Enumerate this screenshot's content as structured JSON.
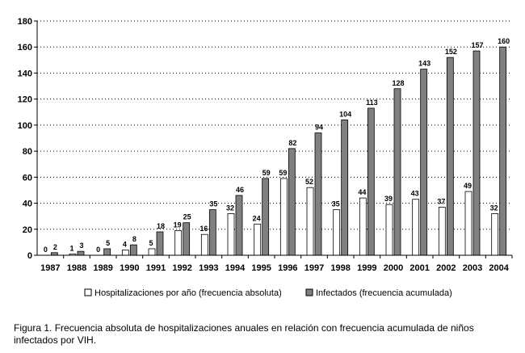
{
  "chart_data": {
    "type": "bar",
    "title": "",
    "xlabel": "",
    "ylabel": "",
    "ylim": [
      0,
      180
    ],
    "yticks": [
      0,
      20,
      40,
      60,
      80,
      100,
      120,
      140,
      160,
      180
    ],
    "ytick_labels": [
      "0",
      "20",
      "40",
      "60",
      "80",
      "100",
      "120",
      "140",
      "160",
      "180"
    ],
    "grid": "horizontal dotted",
    "legend_position": "bottom",
    "categories": [
      "1987",
      "1988",
      "1989",
      "1990",
      "1991",
      "1992",
      "1993",
      "1994",
      "1995",
      "1996",
      "1997",
      "1998",
      "1999",
      "2000",
      "2001",
      "2002",
      "2003",
      "2004"
    ],
    "series": [
      {
        "name": "Hospitalizaciones por año (frecuencia absoluta)",
        "color": "#ffffff",
        "values": [
          0,
          1,
          0,
          4,
          5,
          19,
          16,
          32,
          24,
          59,
          52,
          35,
          44,
          39,
          43,
          37,
          49,
          32
        ]
      },
      {
        "name": "Infectados (frecuencia acumulada)",
        "color": "#808080",
        "values": [
          2,
          3,
          5,
          8,
          18,
          25,
          35,
          46,
          59,
          82,
          94,
          104,
          113,
          128,
          143,
          152,
          157,
          160
        ]
      }
    ]
  },
  "caption": "Figura 1. Frecuencia absoluta de hospitalizaciones anuales en relación con frecuencia acumulada de niños infectados por VIH."
}
